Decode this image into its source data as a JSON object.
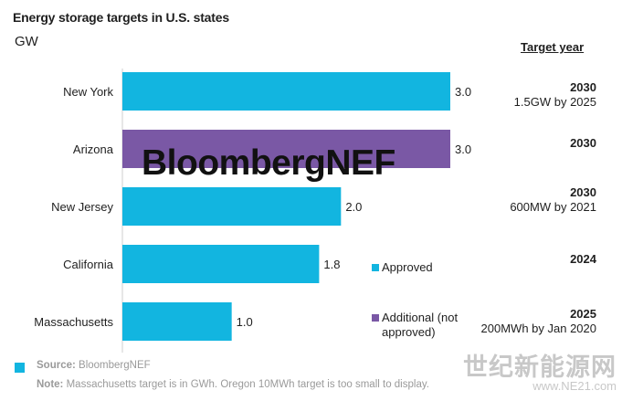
{
  "title": "Energy storage targets in U.S. states",
  "unit": "GW",
  "target_year_header": "Target year",
  "colors": {
    "approved": "#12b5e0",
    "additional": "#7a58a5"
  },
  "chart_data": {
    "type": "bar",
    "orientation": "horizontal",
    "categories": [
      "New York",
      "Arizona",
      "New Jersey",
      "California",
      "Massachusetts"
    ],
    "values": [
      3.0,
      3.0,
      2.0,
      1.8,
      1.0
    ],
    "value_labels": [
      "3.0",
      "3.0",
      "2.0",
      "1.8",
      "1.0"
    ],
    "status": [
      "approved",
      "additional",
      "approved",
      "approved",
      "approved"
    ],
    "xlim": [
      0,
      3.0
    ],
    "grid": false,
    "legend": {
      "placement": "right",
      "entries": [
        {
          "key": "approved",
          "label": "Approved"
        },
        {
          "key": "additional",
          "label": "Additional (not approved)"
        }
      ]
    }
  },
  "targets": [
    {
      "year": "2030",
      "note": "1.5GW by 2025"
    },
    {
      "year": "2030",
      "note": ""
    },
    {
      "year": "2030",
      "note": "600MW by 2021"
    },
    {
      "year": "2024",
      "note": ""
    },
    {
      "year": "2025",
      "note": "200MWh by Jan 2020"
    }
  ],
  "watermark": "BloombergNEF",
  "source": {
    "label": "Source:",
    "text": "BloombergNEF"
  },
  "note": {
    "label": "Note:",
    "text": "Massachusetts target is in GWh. Oregon 10MWh target is too small to display."
  },
  "site_mark": {
    "cn": "世纪新能源网",
    "url": "www.NE21.com"
  }
}
